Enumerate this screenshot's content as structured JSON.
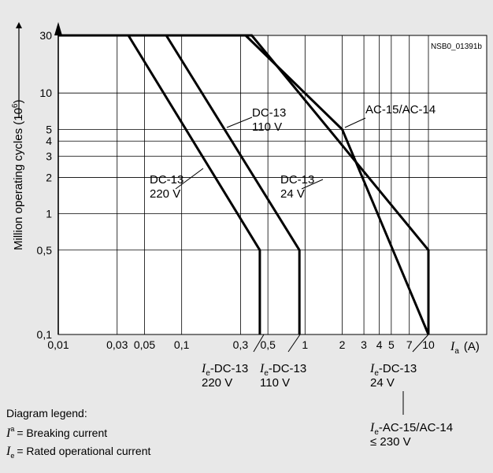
{
  "chart_data": {
    "type": "line",
    "code": "NSB0_01391b",
    "ylabel_main": "Million operating cycles (10",
    "ylabel_exp": "6",
    "ylabel_end": ")",
    "xlabel_var": "I",
    "xlabel_sub": "a",
    "xlabel_unit": "(A)",
    "x_scale": "log",
    "y_scale": "log",
    "xlim": [
      0.01,
      10
    ],
    "ylim": [
      0.1,
      30
    ],
    "x_ticks": [
      0.01,
      0.03,
      0.05,
      0.1,
      0.3,
      0.5,
      1,
      2,
      3,
      4,
      5,
      7,
      10
    ],
    "x_tick_labels": [
      "0,01",
      "0,03",
      "0,05",
      "0,1",
      "0,3",
      "0,5",
      "1",
      "2",
      "3",
      "4",
      "5",
      "7",
      "10"
    ],
    "y_ticks": [
      0.1,
      0.5,
      1,
      2,
      3,
      4,
      5,
      10,
      30
    ],
    "y_tick_labels": [
      "0,1",
      "0,5",
      "1",
      "2",
      "3",
      "4",
      "5",
      "10",
      "30"
    ],
    "grid": true,
    "series": [
      {
        "label_line1": "DC-13",
        "label_line2": "220 V",
        "points": [
          [
            0.01,
            30
          ],
          [
            0.037,
            30
          ],
          [
            0.43,
            0.5
          ],
          [
            0.43,
            0.1
          ]
        ]
      },
      {
        "label_line1": "DC-13",
        "label_line2": "110 V",
        "points": [
          [
            0.01,
            30
          ],
          [
            0.075,
            30
          ],
          [
            0.9,
            0.5
          ],
          [
            0.9,
            0.1
          ]
        ]
      },
      {
        "label_line1": "DC-13",
        "label_line2": "24 V",
        "points": [
          [
            0.01,
            30
          ],
          [
            0.37,
            30
          ],
          [
            10,
            0.5
          ],
          [
            10,
            0.1
          ]
        ]
      },
      {
        "label_line1": "AC-15/AC-14",
        "points": [
          [
            0.01,
            30
          ],
          [
            0.33,
            30
          ],
          [
            2,
            5
          ],
          [
            10,
            0.1
          ]
        ]
      }
    ],
    "current_labels": [
      {
        "var": "I",
        "sub": "e",
        "line1": "-DC-13",
        "line2": "220 V"
      },
      {
        "var": "I",
        "sub": "e",
        "line1": "-DC-13",
        "line2": "110 V"
      },
      {
        "var": "I",
        "sub": "e",
        "line1": "-DC-13",
        "line2": "24 V"
      },
      {
        "var": "I",
        "sub": "e",
        "line1": "-AC-15/AC-14",
        "line2": "≤ 230 V"
      }
    ]
  },
  "legend": {
    "title": "Diagram legend:",
    "items": [
      {
        "var": "I",
        "sub": "a",
        "text": "= Breaking current"
      },
      {
        "var": "I",
        "sub": "e",
        "text": "= Rated operational current"
      }
    ]
  }
}
